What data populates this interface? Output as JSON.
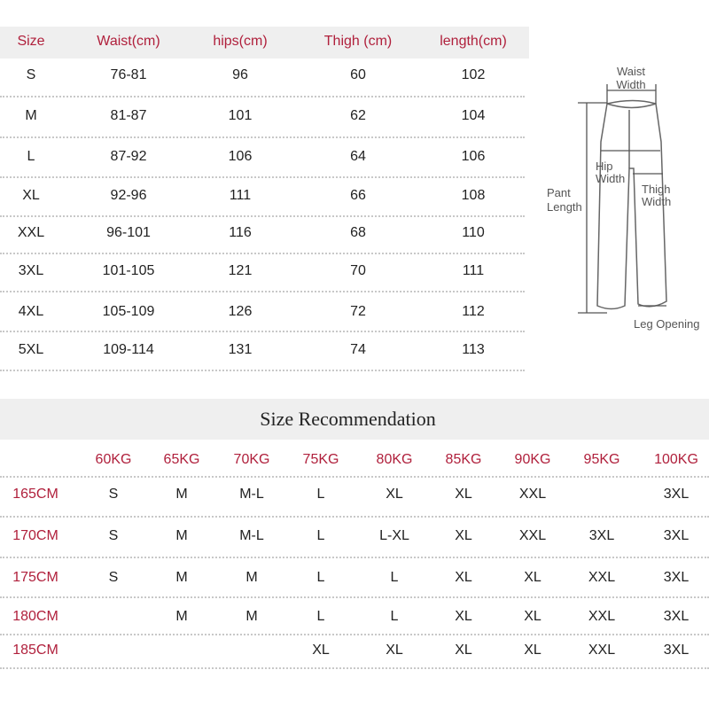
{
  "size_chart": {
    "headers": [
      "Size",
      "Waist(cm)",
      "hips(cm)",
      "Thigh (cm)",
      "length(cm)"
    ],
    "rows": [
      [
        "S",
        "76-81",
        "96",
        "60",
        "102"
      ],
      [
        "M",
        "81-87",
        "101",
        "62",
        "104"
      ],
      [
        "L",
        "87-92",
        "106",
        "64",
        "106"
      ],
      [
        "XL",
        "92-96",
        "111",
        "66",
        "108"
      ],
      [
        "XXL",
        "96-101",
        "116",
        "68",
        "110"
      ],
      [
        "3XL",
        "101-105",
        "121",
        "70",
        "111"
      ],
      [
        "4XL",
        "105-109",
        "126",
        "72",
        "112"
      ],
      [
        "5XL",
        "109-114",
        "131",
        "74",
        "113"
      ]
    ]
  },
  "diagram": {
    "labels": {
      "waist": "Waist",
      "waist2": "Width",
      "hip": "Hip",
      "hip2": "Width",
      "thigh": "Thigh",
      "thigh2": "Width",
      "pant": "Pant",
      "pant2": "Length",
      "leg": "Leg Opening"
    }
  },
  "recommendation": {
    "title": "Size Recommendation",
    "weights": [
      "60KG",
      "65KG",
      "70KG",
      "75KG",
      "80KG",
      "85KG",
      "90KG",
      "95KG",
      "100KG"
    ],
    "rows": [
      {
        "height": "165CM",
        "sizes": [
          "S",
          "M",
          "M-L",
          "L",
          "XL",
          "XL",
          "XXL",
          "",
          "3XL"
        ]
      },
      {
        "height": "170CM",
        "sizes": [
          "S",
          "M",
          "M-L",
          "L",
          "L-XL",
          "XL",
          "XXL",
          "3XL",
          "3XL"
        ]
      },
      {
        "height": "175CM",
        "sizes": [
          "S",
          "M",
          "M",
          "L",
          "L",
          "XL",
          "XL",
          "XXL",
          "3XL"
        ]
      },
      {
        "height": "180CM",
        "sizes": [
          "",
          "M",
          "M",
          "L",
          "L",
          "XL",
          "XL",
          "XXL",
          "3XL"
        ]
      },
      {
        "height": "185CM",
        "sizes": [
          "",
          "",
          "",
          "XL",
          "XL",
          "XL",
          "XL",
          "XXL",
          "3XL"
        ]
      }
    ]
  },
  "colors": {
    "accent": "#b0203c",
    "band": "#efefef"
  }
}
